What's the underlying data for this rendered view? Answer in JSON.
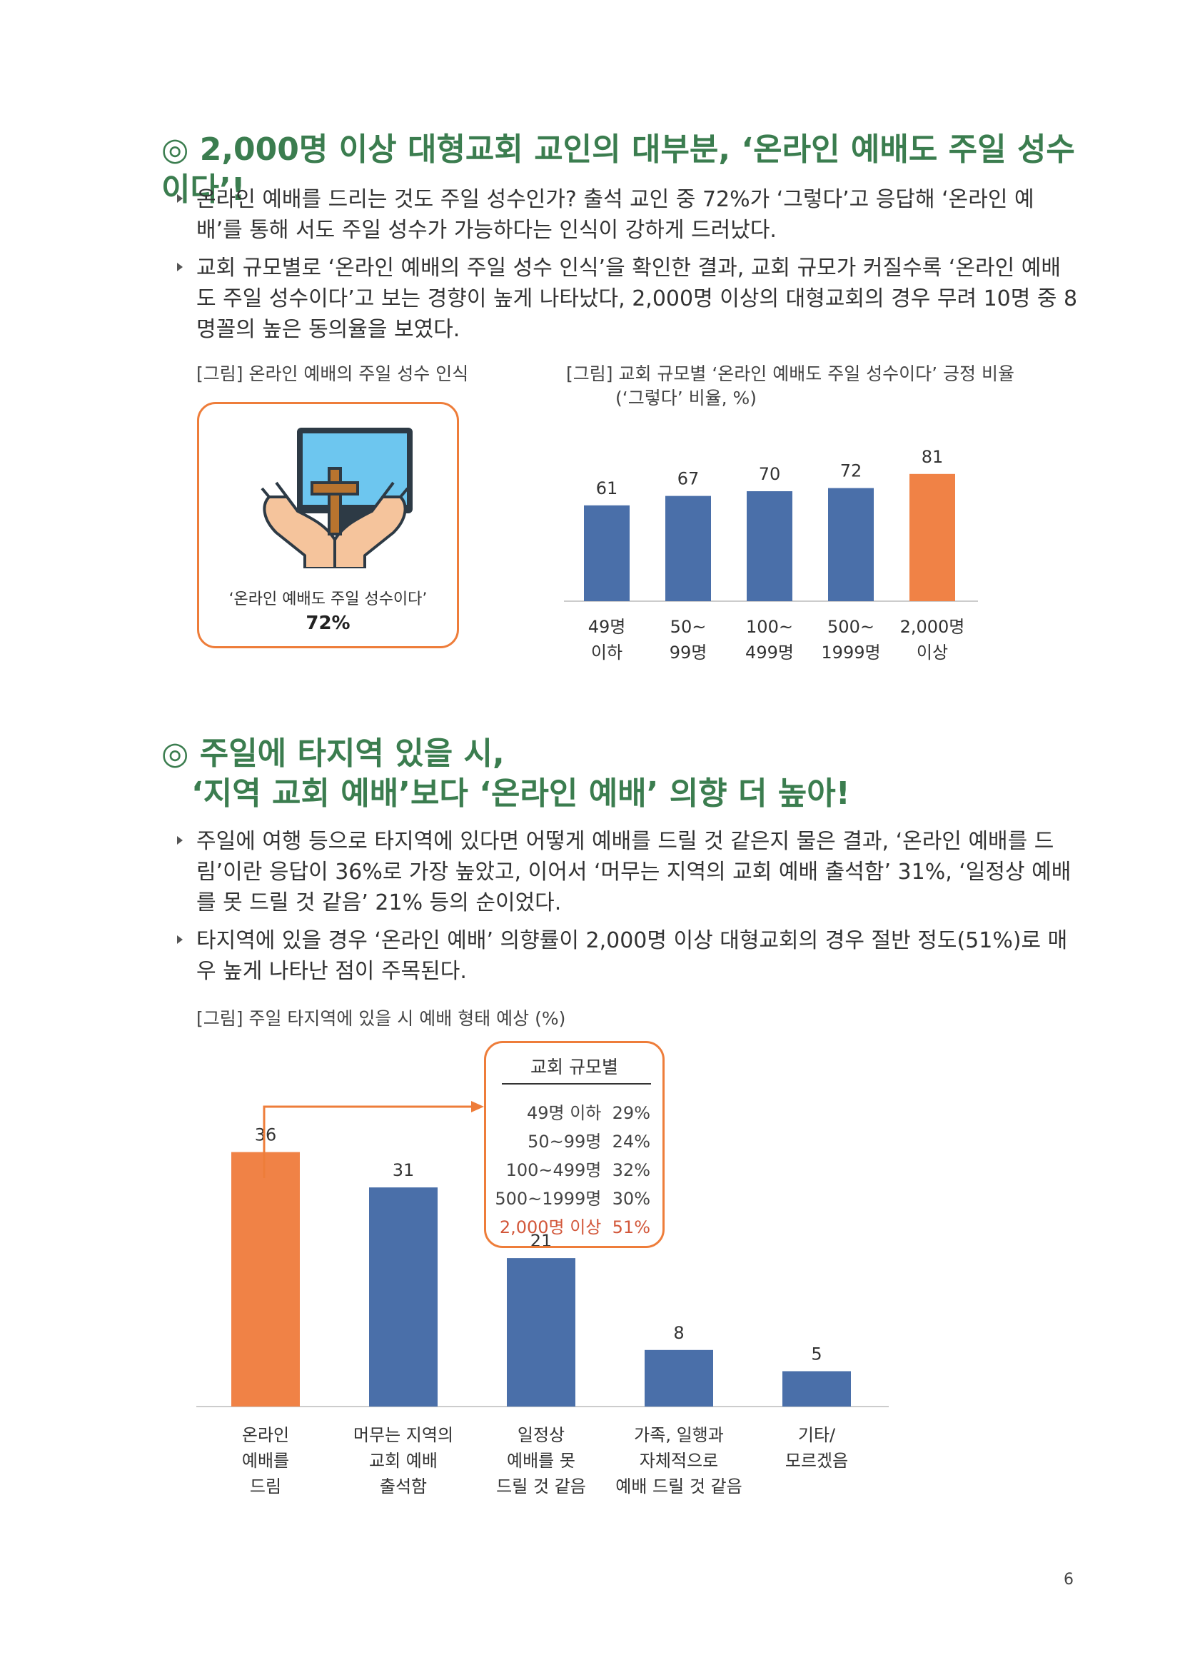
{
  "section1": {
    "heading": "◎ 2,000명 이상 대형교회 교인의 대부분, ‘온라인 예배도 주일 성수이다’!",
    "bullets": [
      "온라인 예배를 드리는 것도 주일 성수인가? 출석 교인 중 72%가 ‘그렇다’고 응답해 ‘온라인 예배’를 통해 서도 주일 성수가 가능하다는 인식이 강하게 드러났다.",
      "교회 규모별로 ‘온라인 예배의 주일 성수 인식’을 확인한 결과, 교회 규모가 커질수록 ‘온라인 예배도 주일 성수이다’고 보는 경향이 높게 나타났다, 2,000명 이상의 대형교회의 경우 무려 10명 중 8명꼴의 높은 동의율을 보였다."
    ],
    "figure1": {
      "caption": "[그림] 온라인 예배의 주일 성수 인식",
      "label": "‘온라인 예배도 주일 성수이다’",
      "value": "72%"
    },
    "figure2": {
      "caption_line1": "[그림] 교회 규모별 ‘온라인 예배도 주일 성수이다’ 긍정 비율",
      "caption_line2": "(‘그렇다’ 비율, %)"
    }
  },
  "section2": {
    "heading_line1": "◎ 주일에 타지역 있을 시,",
    "heading_line2": "‘지역 교회 예배’보다 ‘온라인 예배’ 의향 더 높아!",
    "bullets": [
      "주일에 여행 등으로 타지역에 있다면 어떻게 예배를 드릴 것 같은지 물은 결과, ‘온라인 예배를 드림’이란 응답이 36%로 가장 높았고, 이어서 ‘머무는 지역의 교회 예배 출석함’ 31%, ‘일정상 예배를 못 드릴 것 같음’ 21% 등의 순이었다.",
      "타지역에 있을 경우 ‘온라인 예배’ 의향률이 2,000명 이상 대형교회의 경우 절반 정도(51%)로 매우 높게 나타난 점이 주목된다."
    ],
    "figure3": {
      "caption": "[그림] 주일 타지역에 있을 시 예배 형태 예상 (%)"
    },
    "inset": {
      "title": "교회 규모별",
      "rows": [
        {
          "label": "49명 이하",
          "value": "29%"
        },
        {
          "label": "50~99명",
          "value": "24%"
        },
        {
          "label": "100~499명",
          "value": "32%"
        },
        {
          "label": "500~1999명",
          "value": "30%"
        },
        {
          "label": "2,000명 이상",
          "value": "51%"
        }
      ]
    }
  },
  "page_number": "6",
  "colors": {
    "accent_green": "#3b7d4f",
    "bar_blue": "#4a6fa9",
    "bar_orange": "#f08246",
    "box_orange": "#ee7d3a",
    "highlight_red": "#d2573a"
  },
  "icons": [
    "double-circle-icon",
    "hands-cross-monitor-icon"
  ],
  "chart_data": [
    {
      "type": "bar",
      "categories": [
        "49명\n이하",
        "50~\n99명",
        "100~\n499명",
        "500~\n1999명",
        "2,000명\n이상"
      ],
      "values": [
        61,
        67,
        70,
        72,
        81
      ],
      "highlight_index": 4,
      "ylim": [
        0,
        100
      ]
    },
    {
      "type": "bar",
      "categories": [
        "온라인\n예배를\n드림",
        "머무는 지역의\n교회 예배\n출석함",
        "일정상\n예배를 못\n드릴 것 같음",
        "가족, 일행과\n자체적으로\n예배 드릴 것 같음",
        "기타/\n모르겠음"
      ],
      "values": [
        36,
        31,
        21,
        8,
        5
      ],
      "highlight_index": 0,
      "ylim": [
        0,
        50
      ]
    }
  ]
}
